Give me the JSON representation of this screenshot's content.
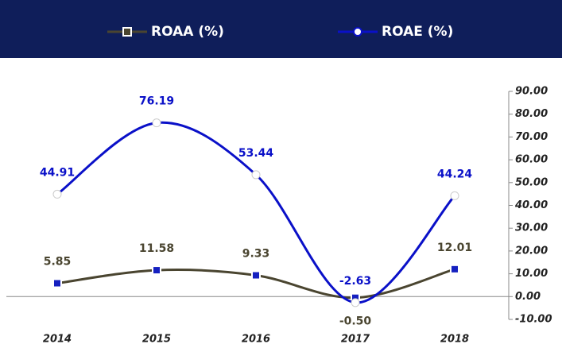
{
  "chart_data": {
    "type": "line",
    "categories": [
      "2014",
      "2015",
      "2016",
      "2017",
      "2018"
    ],
    "series": [
      {
        "name": "ROAA (%)",
        "color": "#4a4530",
        "values": [
          5.85,
          11.58,
          9.33,
          -0.5,
          12.01
        ],
        "value_labels": [
          "5.85",
          "11.58",
          "9.33",
          "-0.50",
          "12.01"
        ]
      },
      {
        "name": "ROAE (%)",
        "color": "#0a10c8",
        "values": [
          44.91,
          76.19,
          53.44,
          -2.63,
          44.24
        ]
      }
    ],
    "ylim": [
      -10,
      90
    ],
    "yticks": [
      {
        "value": -10,
        "label": "-10.00"
      },
      {
        "value": 0,
        "label": "0.00"
      },
      {
        "value": 10,
        "label": "10.00"
      },
      {
        "value": 20,
        "label": "20.00"
      },
      {
        "value": 30,
        "label": "30.00"
      },
      {
        "value": 40,
        "label": "40.00"
      },
      {
        "value": 50,
        "label": "50.00"
      },
      {
        "value": 60,
        "label": "60.00"
      },
      {
        "value": 70,
        "label": "70.00"
      },
      {
        "value": 80,
        "label": "80.00"
      },
      {
        "value": 90,
        "label": "90.00"
      }
    ],
    "legend": "top"
  }
}
